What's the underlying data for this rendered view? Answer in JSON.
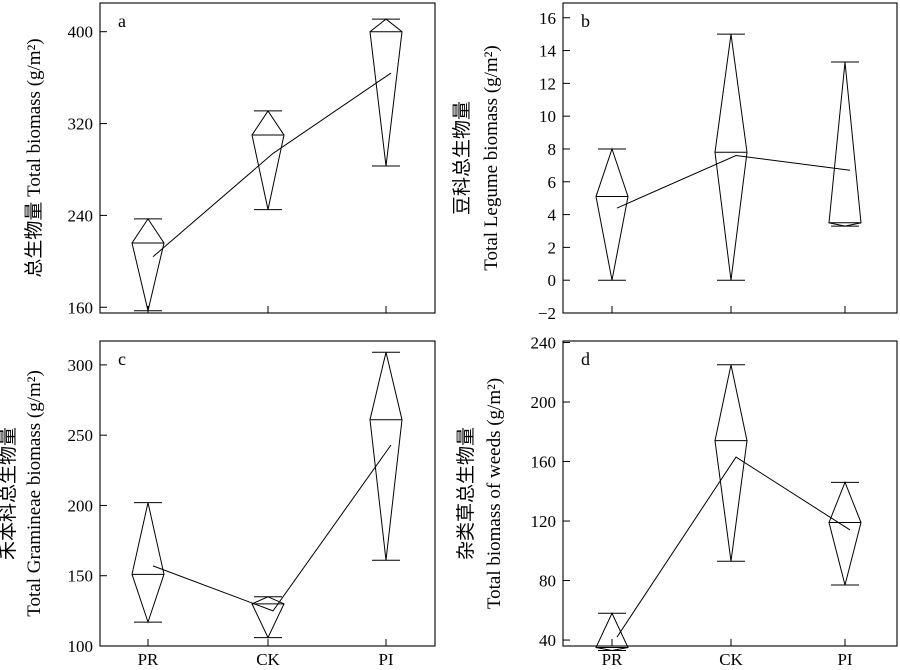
{
  "chart_data": [
    {
      "type": "box-diamond",
      "panel_label": "a",
      "ylabel_lines": [
        "总生物量 Total biomass (g/m²)"
      ],
      "categories": [
        "PR",
        "CK",
        "PI"
      ],
      "ylim": [
        155,
        425
      ],
      "yticks": [
        160,
        240,
        320,
        400
      ],
      "show_x_labels": false,
      "groups": [
        {
          "category": "PR",
          "min": 157,
          "max": 237,
          "median": 216,
          "mean": 204
        },
        {
          "category": "CK",
          "min": 245,
          "max": 331,
          "median": 310,
          "mean": 294
        },
        {
          "category": "PI",
          "min": 283,
          "max": 411,
          "median": 400,
          "mean": 364
        }
      ]
    },
    {
      "type": "box-diamond",
      "panel_label": "b",
      "ylabel_lines": [
        "豆科总生物量",
        "Total Legume biomass (g/m²)"
      ],
      "categories": [
        "PR",
        "CK",
        "PI"
      ],
      "ylim": [
        -2,
        16.9
      ],
      "yticks": [
        -2,
        0,
        2,
        4,
        6,
        8,
        10,
        12,
        14,
        16
      ],
      "show_x_labels": false,
      "groups": [
        {
          "category": "PR",
          "min": 0.0,
          "max": 8.0,
          "median": 5.1,
          "mean": 4.4
        },
        {
          "category": "CK",
          "min": 0.0,
          "max": 15.0,
          "median": 7.8,
          "mean": 7.6
        },
        {
          "category": "PI",
          "min": 3.3,
          "max": 13.3,
          "median": 3.5,
          "mean": 6.7
        }
      ]
    },
    {
      "type": "box-diamond",
      "panel_label": "c",
      "ylabel_lines": [
        "禾本科总生物量",
        "Total Gramineae biomass (g/m²)"
      ],
      "categories": [
        "PR",
        "CK",
        "PI"
      ],
      "ylim": [
        100,
        317
      ],
      "yticks": [
        100,
        150,
        200,
        250,
        300
      ],
      "show_x_labels": true,
      "groups": [
        {
          "category": "PR",
          "min": 117,
          "max": 202,
          "median": 151,
          "mean": 157
        },
        {
          "category": "CK",
          "min": 106,
          "max": 135,
          "median": 130,
          "mean": 125
        },
        {
          "category": "PI",
          "min": 161,
          "max": 309,
          "median": 261,
          "mean": 243
        }
      ]
    },
    {
      "type": "box-diamond",
      "panel_label": "d",
      "ylabel_lines": [
        "杂类草总生物量",
        "Total biomass of weeds (g/m²)"
      ],
      "categories": [
        "PR",
        "CK",
        "PI"
      ],
      "ylim": [
        36,
        241
      ],
      "yticks": [
        40,
        80,
        120,
        160,
        200,
        240
      ],
      "show_x_labels": true,
      "groups": [
        {
          "category": "PR",
          "min": 33,
          "max": 58,
          "median": 35,
          "mean": 42
        },
        {
          "category": "CK",
          "min": 93,
          "max": 225,
          "median": 174,
          "mean": 163
        },
        {
          "category": "PI",
          "min": 77,
          "max": 146,
          "median": 119,
          "mean": 114
        }
      ]
    }
  ]
}
